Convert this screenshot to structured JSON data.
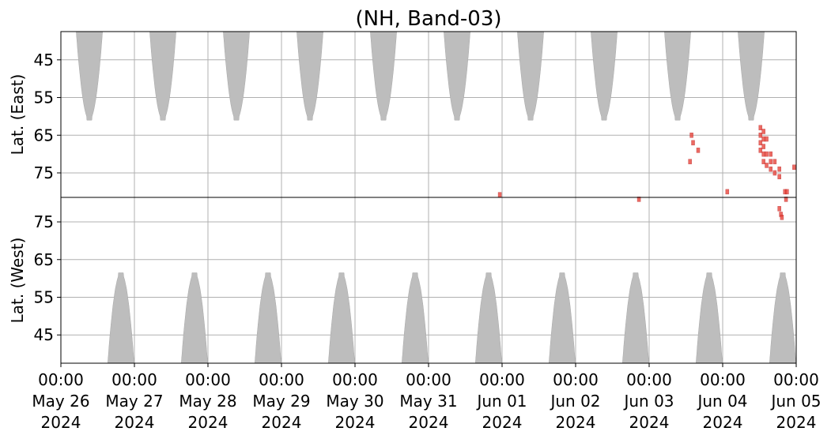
{
  "chart_data": {
    "type": "coverage",
    "title": "(NH, Band-03)",
    "xlim": [
      "2024-05-26T00:00",
      "2024-06-05T00:00"
    ],
    "xticks": [
      {
        "value": "2024-05-26T00:00",
        "label": [
          "00:00",
          "May 26",
          "2024"
        ]
      },
      {
        "value": "2024-05-27T00:00",
        "label": [
          "00:00",
          "May 27",
          "2024"
        ]
      },
      {
        "value": "2024-05-28T00:00",
        "label": [
          "00:00",
          "May 28",
          "2024"
        ]
      },
      {
        "value": "2024-05-29T00:00",
        "label": [
          "00:00",
          "May 29",
          "2024"
        ]
      },
      {
        "value": "2024-05-30T00:00",
        "label": [
          "00:00",
          "May 30",
          "2024"
        ]
      },
      {
        "value": "2024-05-31T00:00",
        "label": [
          "00:00",
          "May 31",
          "2024"
        ]
      },
      {
        "value": "2024-06-01T00:00",
        "label": [
          "00:00",
          "Jun 01",
          "2024"
        ]
      },
      {
        "value": "2024-06-02T00:00",
        "label": [
          "00:00",
          "Jun 02",
          "2024"
        ]
      },
      {
        "value": "2024-06-03T00:00",
        "label": [
          "00:00",
          "Jun 03",
          "2024"
        ]
      },
      {
        "value": "2024-06-04T00:00",
        "label": [
          "00:00",
          "Jun 04",
          "2024"
        ]
      },
      {
        "value": "2024-06-05T00:00",
        "label": [
          "00:00",
          "Jun 05",
          "2024"
        ]
      }
    ],
    "grid": true,
    "gap_color": "#bdbdbd",
    "event_color": "#e8453c",
    "gap_halfwidth_hours": 4.3,
    "panels": [
      {
        "ylabel": "Lat. (East)",
        "ylim": [
          37.5,
          81.5
        ],
        "inverted": true,
        "yticks": [
          45,
          55,
          65,
          75
        ],
        "gaps": {
          "x": [
            "2024-05-26T09:18",
            "2024-05-27T09:18",
            "2024-05-28T09:18",
            "2024-05-29T09:18",
            "2024-05-30T09:18",
            "2024-05-31T09:18",
            "2024-06-01T09:18",
            "2024-06-02T09:18",
            "2024-06-03T09:18",
            "2024-06-04T09:18"
          ],
          "values": [
            61,
            61,
            61,
            61,
            61,
            61,
            61,
            61,
            61,
            61
          ]
        },
        "events": {
          "x": [
            "2024-05-31T23:15",
            "2024-06-03T13:50",
            "2024-06-03T14:20",
            "2024-06-03T13:20",
            "2024-06-03T16:00",
            "2024-06-04T01:30",
            "2024-06-04T12:20",
            "2024-06-04T12:20",
            "2024-06-04T12:20",
            "2024-06-04T12:20",
            "2024-06-04T13:20",
            "2024-06-04T13:20",
            "2024-06-04T13:20",
            "2024-06-04T13:20",
            "2024-06-04T13:20",
            "2024-06-04T14:20",
            "2024-06-04T14:20",
            "2024-06-04T14:20",
            "2024-06-04T15:40",
            "2024-06-04T15:40",
            "2024-06-04T15:40",
            "2024-06-04T17:00",
            "2024-06-04T17:00",
            "2024-06-04T18:30",
            "2024-06-04T18:30",
            "2024-06-04T20:20",
            "2024-06-04T21:00",
            "2024-06-04T23:20"
          ],
          "values": [
            80.8,
            65,
            67,
            72,
            69,
            80,
            63,
            65,
            67,
            69,
            64,
            66,
            68,
            70,
            72,
            66,
            70,
            73,
            70,
            72,
            74,
            72,
            75,
            74,
            76,
            80,
            80,
            73.5
          ]
        }
      },
      {
        "ylabel": "Lat. (West)",
        "ylim": [
          37.5,
          81.5
        ],
        "inverted": false,
        "yticks": [
          45,
          55,
          65,
          75
        ],
        "gaps": {
          "x": [
            "2024-05-26T19:36",
            "2024-05-27T19:36",
            "2024-05-28T19:36",
            "2024-05-29T19:36",
            "2024-05-30T19:36",
            "2024-05-31T19:36",
            "2024-06-01T19:36",
            "2024-06-02T19:36",
            "2024-06-03T19:36",
            "2024-06-04T19:36"
          ],
          "values": [
            61.5,
            61.5,
            61.5,
            61.5,
            61.5,
            61.5,
            61.5,
            61.5,
            61.5,
            61.5
          ]
        },
        "events": {
          "x": [
            "2024-06-02T20:40",
            "2024-06-04T18:30",
            "2024-06-04T19:00",
            "2024-06-04T19:20",
            "2024-06-04T20:40"
          ],
          "values": [
            81,
            78.5,
            77,
            76.2,
            81
          ]
        }
      }
    ]
  }
}
